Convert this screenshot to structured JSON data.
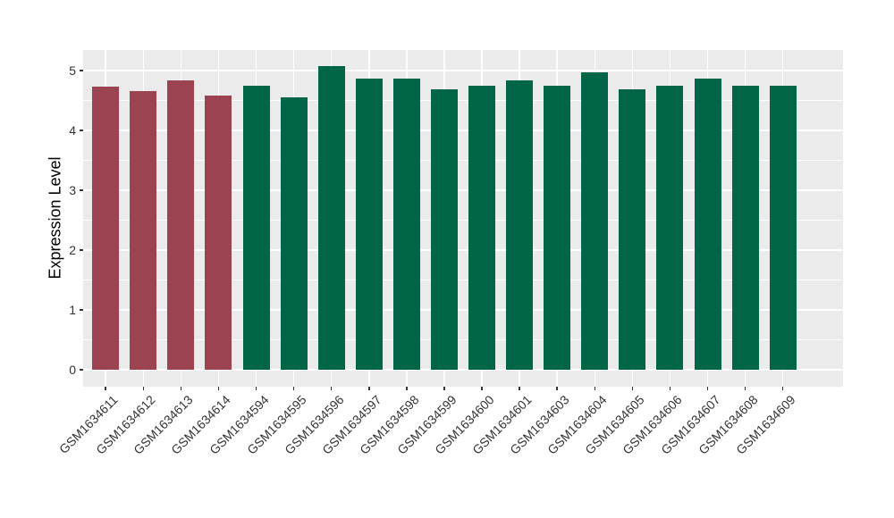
{
  "chart_data": {
    "type": "bar",
    "title": "",
    "xlabel": "",
    "ylabel": "Expression Level",
    "ylim": [
      -0.28,
      5.34
    ],
    "yticks": [
      0,
      1,
      2,
      3,
      4,
      5
    ],
    "yticks_minor": [
      0.5,
      1.5,
      2.5,
      3.5,
      4.5
    ],
    "grid": "horizontal major+minor, vertical major at category centers",
    "legend": "none",
    "categories": [
      "GSM1634611",
      "GSM1634612",
      "GSM1634613",
      "GSM1634614",
      "GSM1634594",
      "GSM1634595",
      "GSM1634596",
      "GSM1634597",
      "GSM1634598",
      "GSM1634599",
      "GSM1634600",
      "GSM1634601",
      "GSM1634603",
      "GSM1634604",
      "GSM1634605",
      "GSM1634606",
      "GSM1634607",
      "GSM1634608",
      "GSM1634609"
    ],
    "values": [
      4.73,
      4.66,
      4.84,
      4.58,
      4.74,
      4.55,
      5.07,
      4.86,
      4.86,
      4.68,
      4.74,
      4.83,
      4.74,
      4.96,
      4.69,
      4.74,
      4.86,
      4.74,
      4.74
    ],
    "bar_colors": [
      "#9B4351",
      "#9B4351",
      "#9B4351",
      "#9B4351",
      "#006647",
      "#006647",
      "#006647",
      "#006647",
      "#006647",
      "#006647",
      "#006647",
      "#006647",
      "#006647",
      "#006647",
      "#006647",
      "#006647",
      "#006647",
      "#006647",
      "#006647"
    ],
    "colors": {
      "red_group": "#9B4351",
      "green_group": "#006647",
      "panel_background": "#EBEBEB",
      "gridline": "#FFFFFF",
      "axis_text": "#333333",
      "axis_title": "#000000"
    }
  }
}
